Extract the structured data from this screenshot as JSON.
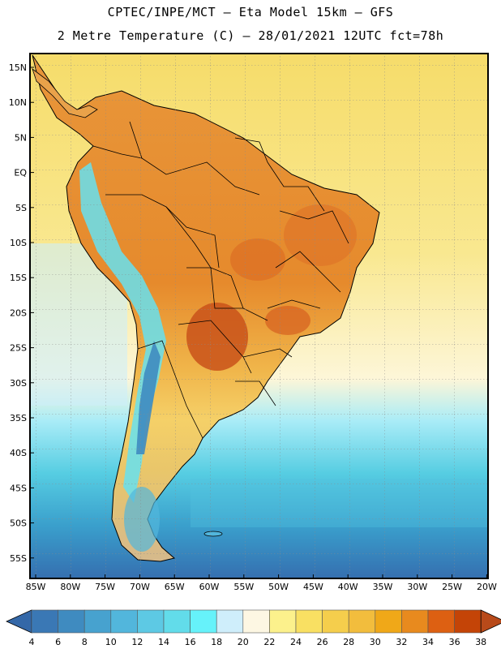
{
  "title": {
    "line1": "CPTEC/INPE/MCT –  Eta Model 15km – GFS",
    "line2": "2 Metre Temperature (C) – 28/01/2021 12UTC fct=78h"
  },
  "map": {
    "lat_labels": [
      "15N",
      "10N",
      "5N",
      "EQ",
      "5S",
      "10S",
      "15S",
      "20S",
      "25S",
      "30S",
      "35S",
      "40S",
      "45S",
      "50S",
      "55S"
    ],
    "lon_labels": [
      "85W",
      "80W",
      "75W",
      "70W",
      "65W",
      "60W",
      "55W",
      "50W",
      "45W",
      "40W",
      "35W",
      "30W",
      "25W",
      "20W"
    ]
  },
  "colorbar": {
    "labels": [
      "4",
      "6",
      "8",
      "10",
      "12",
      "14",
      "16",
      "18",
      "20",
      "22",
      "24",
      "26",
      "28",
      "30",
      "32",
      "34",
      "36",
      "38"
    ],
    "colors": [
      "#3a78b5",
      "#3f8bc0",
      "#47a2cf",
      "#52b6dc",
      "#5dc9e4",
      "#62dcea",
      "#66f2fa",
      "#cfeefb",
      "#fdf7e3",
      "#fcf18c",
      "#f9e062",
      "#f5ce4c",
      "#f2bd3d",
      "#f0a818",
      "#e88a1e",
      "#dd6012",
      "#c44407"
    ],
    "low_color": "#3468a8",
    "high_color": "#b84a1a"
  }
}
